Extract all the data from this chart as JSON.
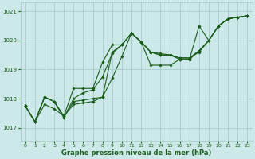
{
  "bg_color": "#cce8e8",
  "grid_color": "#a0c8c8",
  "line_color": "#1a5c1a",
  "marker_color": "#1a5c1a",
  "xlabel": "Graphe pression niveau de la mer (hPa)",
  "xlabel_color": "#1a5c1a",
  "tick_color": "#1a5c1a",
  "xlim": [
    -0.5,
    23.5
  ],
  "ylim": [
    1016.55,
    1021.3
  ],
  "yticks": [
    1017,
    1018,
    1019,
    1020,
    1021
  ],
  "xticks": [
    0,
    1,
    2,
    3,
    4,
    5,
    6,
    7,
    8,
    9,
    10,
    11,
    12,
    13,
    14,
    15,
    16,
    17,
    18,
    19,
    20,
    21,
    22,
    23
  ],
  "series": [
    [
      1017.75,
      1017.2,
      1017.8,
      1017.65,
      1017.4,
      1017.8,
      1017.85,
      1017.9,
      1018.05,
      1019.6,
      1019.85,
      1020.25,
      1019.95,
      1019.6,
      1019.5,
      1019.5,
      1019.35,
      1019.35,
      1020.5,
      1020.0,
      1020.5,
      1020.75,
      1020.8,
      1020.85
    ],
    [
      1017.75,
      1017.2,
      1018.05,
      1017.9,
      1017.4,
      1018.35,
      1018.35,
      1018.35,
      1019.25,
      1019.85,
      1019.85,
      1020.25,
      1019.95,
      1019.6,
      1019.55,
      1019.5,
      1019.4,
      1019.4,
      1019.6,
      1020.0,
      1020.5,
      1020.75,
      1020.8,
      1020.85
    ],
    [
      1017.75,
      1017.2,
      1018.05,
      1017.9,
      1017.35,
      1018.0,
      1018.2,
      1018.3,
      1018.75,
      1019.55,
      1019.85,
      1020.25,
      1019.95,
      1019.15,
      1019.15,
      1019.15,
      1019.35,
      1019.35,
      1019.65,
      1020.0,
      1020.5,
      1020.75,
      1020.8,
      1020.85
    ],
    [
      1017.75,
      1017.2,
      1018.05,
      1017.9,
      1017.35,
      1017.9,
      1017.95,
      1018.0,
      1018.05,
      1018.7,
      1019.45,
      1020.25,
      1019.95,
      1019.6,
      1019.5,
      1019.5,
      1019.4,
      1019.4,
      1019.65,
      1020.0,
      1020.5,
      1020.75,
      1020.8,
      1020.85
    ]
  ]
}
